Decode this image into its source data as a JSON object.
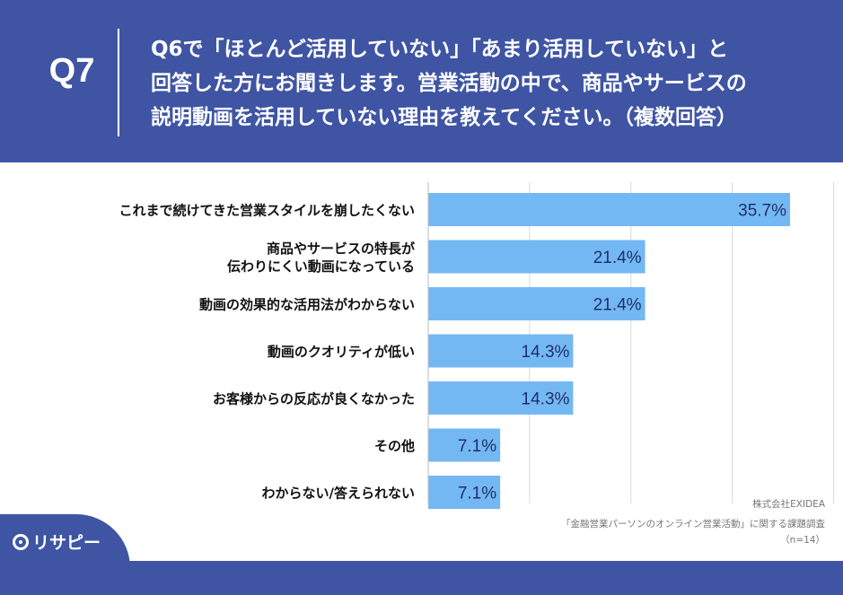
{
  "question": {
    "id": "Q7",
    "text": "Q6で「ほとんど活用していない」「あまり活用していない」と\n回答した方にお聞きします。営業活動の中で、商品やサービスの\n説明動画を活用していない理由を教えてください。（複数回答）"
  },
  "chart_data": {
    "type": "bar",
    "orientation": "horizontal",
    "categories": [
      "これまで続けてきた営業スタイルを崩したくない",
      "商品やサービスの特長が\n伝わりにくい動画になっている",
      "動画の効果的な活用法がわからない",
      "動画のクオリティが低い",
      "お客様からの反応が良くなかった",
      "その他",
      "わからない/答えられない"
    ],
    "values": [
      35.7,
      21.4,
      21.4,
      14.3,
      14.3,
      7.1,
      7.1
    ],
    "value_labels": [
      "35.7%",
      "21.4%",
      "21.4%",
      "14.3%",
      "14.3%",
      "7.1%",
      "7.1%"
    ],
    "xlim": [
      0,
      40
    ],
    "grid": true,
    "bar_color": "#74b8f3"
  },
  "source": {
    "company": "株式会社EXIDEA",
    "survey": "「金融営業パーソンのオンライン営業活動」に関する課題調査",
    "n": "（n=14）"
  },
  "logo": {
    "text": "リサピー"
  }
}
